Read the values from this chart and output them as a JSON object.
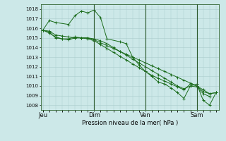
{
  "xlabel": "Pression niveau de la mer( hPa )",
  "bg_color": "#cce8e8",
  "grid_color": "#aacccc",
  "line_color": "#1a6b1a",
  "ylim": [
    1007.5,
    1018.5
  ],
  "yticks": [
    1008,
    1009,
    1010,
    1011,
    1012,
    1013,
    1014,
    1015,
    1016,
    1017,
    1018
  ],
  "day_labels": [
    "Jeu",
    "Dim",
    "Ven",
    "Sam"
  ],
  "day_positions": [
    0.5,
    48,
    96,
    144
  ],
  "day_vlines": [
    48,
    96,
    144
  ],
  "xlim": [
    -2,
    165
  ],
  "series1": {
    "x": [
      0,
      6,
      12,
      24,
      30,
      36,
      42,
      48,
      54,
      60,
      72,
      78,
      84,
      90,
      96,
      102,
      108,
      114,
      120,
      126,
      132,
      138,
      144,
      150,
      156,
      162
    ],
    "y": [
      1015.8,
      1016.8,
      1016.6,
      1016.4,
      1017.3,
      1017.8,
      1017.6,
      1017.9,
      1017.1,
      1014.9,
      1014.6,
      1014.4,
      1013.0,
      1012.2,
      1011.5,
      1011.0,
      1010.4,
      1010.2,
      1009.8,
      1009.3,
      1008.7,
      1010.0,
      1010.2,
      1008.5,
      1008.0,
      1009.3
    ]
  },
  "series2": {
    "x": [
      0,
      6,
      12,
      18,
      24,
      30,
      36,
      42,
      48,
      54,
      60,
      66,
      72,
      78,
      84,
      90,
      96,
      102,
      108,
      114,
      120,
      126,
      132,
      138,
      144,
      150,
      156,
      162
    ],
    "y": [
      1015.8,
      1015.7,
      1015.3,
      1015.2,
      1015.1,
      1015.0,
      1015.0,
      1015.0,
      1014.8,
      1014.5,
      1014.2,
      1013.9,
      1013.6,
      1013.3,
      1013.0,
      1012.7,
      1012.4,
      1012.1,
      1011.8,
      1011.5,
      1011.2,
      1010.9,
      1010.6,
      1010.3,
      1010.0,
      1009.6,
      1009.2,
      1009.3
    ]
  },
  "series3": {
    "x": [
      0,
      6,
      12,
      18,
      24,
      30,
      36,
      42,
      48,
      54,
      60,
      66,
      72,
      78,
      84,
      90,
      96,
      102,
      108,
      114,
      120,
      126,
      132,
      138,
      144,
      150,
      156,
      162
    ],
    "y": [
      1015.8,
      1015.5,
      1015.1,
      1014.9,
      1014.9,
      1015.1,
      1015.0,
      1014.9,
      1014.7,
      1014.3,
      1013.9,
      1013.5,
      1013.1,
      1012.7,
      1012.3,
      1011.9,
      1011.5,
      1011.1,
      1010.8,
      1010.5,
      1010.2,
      1009.9,
      1009.6,
      1010.2,
      1010.0,
      1009.4,
      1009.2,
      1009.3
    ]
  },
  "series4": {
    "x": [
      0,
      6,
      12,
      18,
      24,
      30,
      36,
      42,
      48,
      54,
      60,
      66,
      72,
      78,
      84,
      90,
      96,
      102,
      108,
      114,
      120,
      126,
      132,
      138,
      144,
      150,
      156
    ],
    "y": [
      1015.8,
      1015.6,
      1015.0,
      1014.9,
      1014.8,
      1015.0,
      1015.0,
      1015.0,
      1014.9,
      1014.7,
      1014.4,
      1014.0,
      1013.6,
      1013.2,
      1012.8,
      1012.4,
      1012.0,
      1011.6,
      1011.2,
      1010.8,
      1010.4,
      1010.0,
      1009.7,
      1010.0,
      1009.9,
      1009.2,
      1008.9
    ]
  }
}
